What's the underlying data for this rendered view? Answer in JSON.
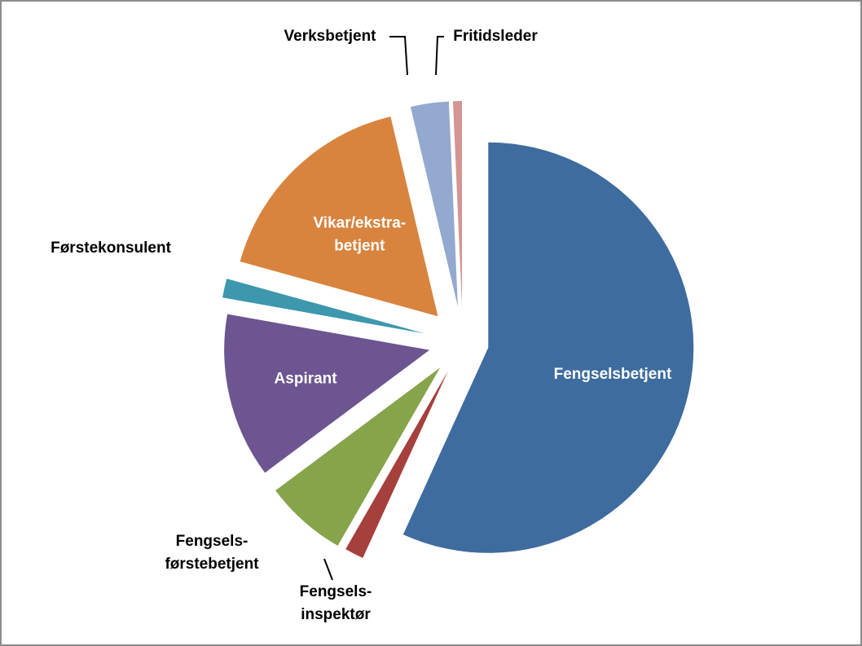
{
  "chart_data": {
    "type": "pie",
    "categories": [
      "Fengselsbetjent",
      "Fengsels-\ninspektør",
      "Fengsels-\nførstebetjent",
      "Aspirant",
      "Førstekonsulent",
      "Vikar/ekstra-\nbetjent",
      "Verksbetjent",
      "Fritidsleder"
    ],
    "values": [
      56.8,
      1.5,
      6.5,
      13,
      1.5,
      17,
      3,
      0.7
    ],
    "colors": [
      "#3e6c9e",
      "#a5403d",
      "#86a44a",
      "#6c5590",
      "#3d97ad",
      "#d8843f",
      "#93a9cf",
      "#d39593"
    ]
  }
}
